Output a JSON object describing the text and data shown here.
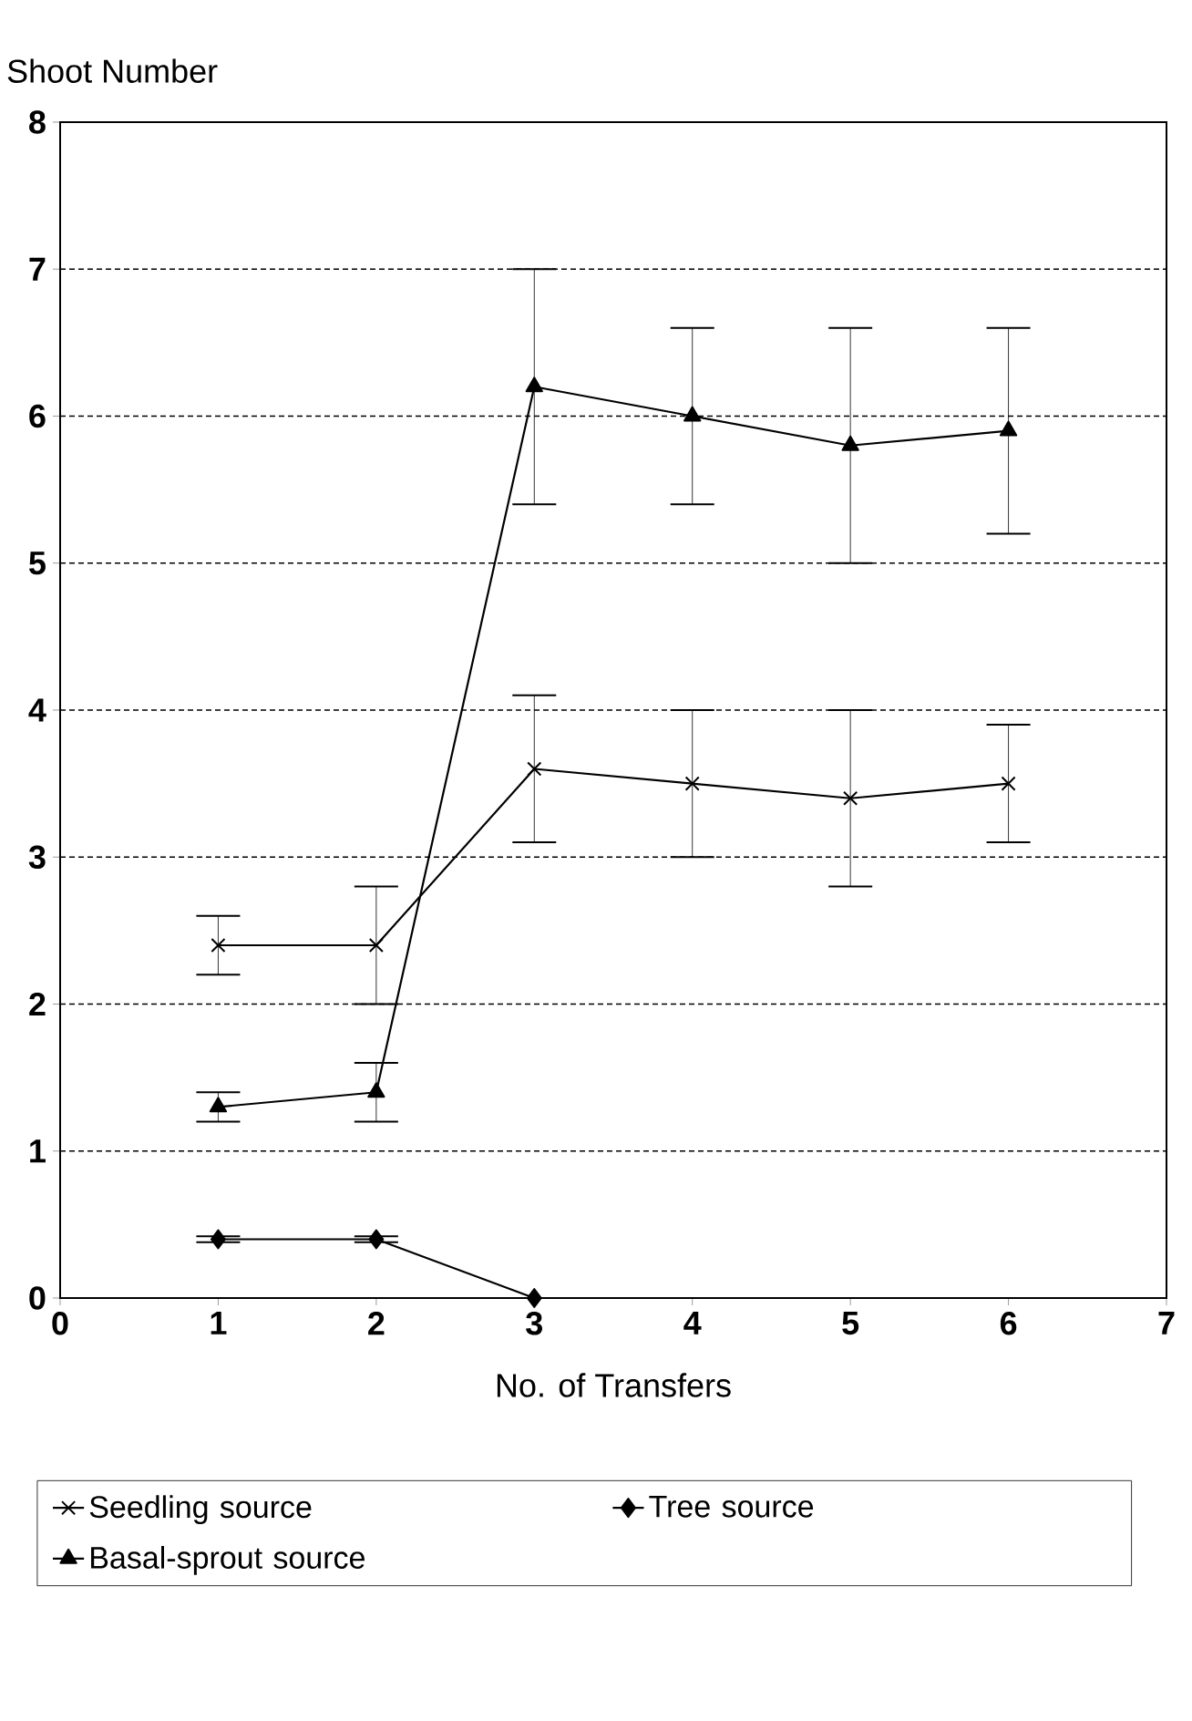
{
  "chart_data": {
    "type": "line",
    "xlabel": "No. of Transfers",
    "ylabel": "Shoot Number",
    "x": [
      1,
      2,
      3,
      4,
      5,
      6
    ],
    "xlim": [
      0,
      7
    ],
    "xticks": [
      0,
      1,
      2,
      3,
      4,
      5,
      6,
      7
    ],
    "ylim": [
      0,
      8
    ],
    "yticks": [
      0,
      1,
      2,
      3,
      4,
      5,
      6,
      7,
      8
    ],
    "grid": "y",
    "legend": "bottom",
    "series": [
      {
        "name": "Seedling source",
        "color": "#000000",
        "marker": "cross",
        "values": [
          2.4,
          2.4,
          3.6,
          3.5,
          3.4,
          3.5
        ],
        "errors": [
          0.2,
          0.4,
          0.5,
          0.5,
          0.6,
          0.4
        ]
      },
      {
        "name": "Tree source",
        "color": "#000000",
        "marker": "diamond",
        "values": [
          0.4,
          0.4,
          0,
          null,
          null,
          null
        ],
        "errors": [
          0.02,
          0.02,
          null,
          null,
          null,
          null
        ]
      },
      {
        "name": "Basal-sprout source",
        "color": "#000000",
        "marker": "triangle",
        "values": [
          1.3,
          1.4,
          6.2,
          6.0,
          5.8,
          5.9
        ],
        "errors": [
          0.1,
          0.2,
          0.8,
          0.6,
          0.8,
          0.7
        ]
      }
    ]
  }
}
